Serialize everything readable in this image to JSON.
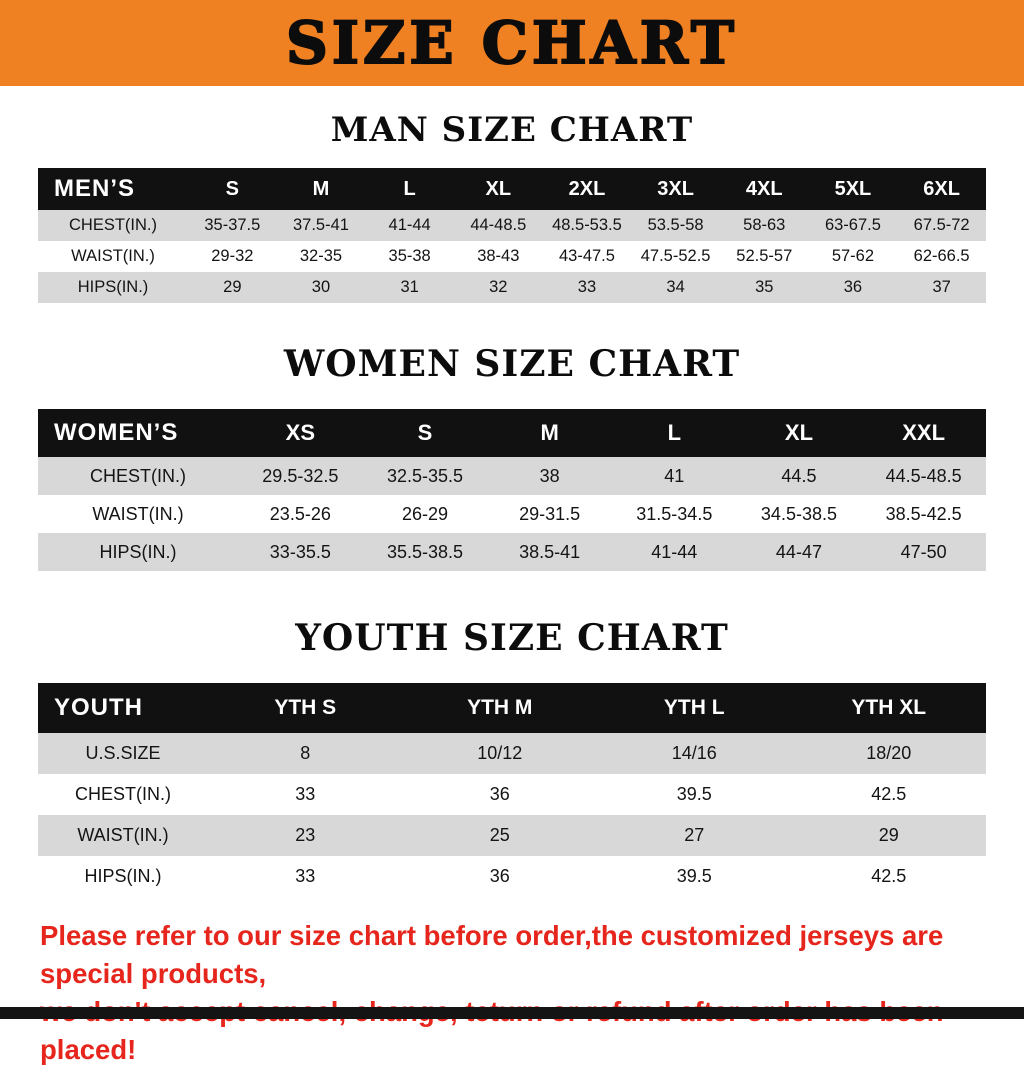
{
  "banner": {
    "title": "SIZE CHART",
    "bg_color": "#f08122"
  },
  "men": {
    "heading": "MAN SIZE CHART",
    "header_label": "MEN’S",
    "columns": [
      "S",
      "M",
      "L",
      "XL",
      "2XL",
      "3XL",
      "4XL",
      "5XL",
      "6XL"
    ],
    "rows": [
      {
        "label": "CHEST(IN.)",
        "values": [
          "35-37.5",
          "37.5-41",
          "41-44",
          "44-48.5",
          "48.5-53.5",
          "53.5-58",
          "58-63",
          "63-67.5",
          "67.5-72"
        ]
      },
      {
        "label": "WAIST(IN.)",
        "values": [
          "29-32",
          "32-35",
          "35-38",
          "38-43",
          "43-47.5",
          "47.5-52.5",
          "52.5-57",
          "57-62",
          "62-66.5"
        ]
      },
      {
        "label": "HIPS(IN.)",
        "values": [
          "29",
          "30",
          "31",
          "32",
          "33",
          "34",
          "35",
          "36",
          "37"
        ]
      }
    ]
  },
  "women": {
    "heading": "WOMEN SIZE CHART",
    "header_label": "WOMEN’S",
    "columns": [
      "XS",
      "S",
      "M",
      "L",
      "XL",
      "XXL"
    ],
    "rows": [
      {
        "label": "CHEST(IN.)",
        "values": [
          "29.5-32.5",
          "32.5-35.5",
          "38",
          "41",
          "44.5",
          "44.5-48.5"
        ]
      },
      {
        "label": "WAIST(IN.)",
        "values": [
          "23.5-26",
          "26-29",
          "29-31.5",
          "31.5-34.5",
          "34.5-38.5",
          "38.5-42.5"
        ]
      },
      {
        "label": "HIPS(IN.)",
        "values": [
          "33-35.5",
          "35.5-38.5",
          "38.5-41",
          "41-44",
          "44-47",
          "47-50"
        ]
      }
    ]
  },
  "youth": {
    "heading": "YOUTH SIZE CHART",
    "header_label": "YOUTH",
    "columns": [
      "YTH S",
      "YTH M",
      "YTH L",
      "YTH XL"
    ],
    "rows": [
      {
        "label": "U.S.SIZE",
        "values": [
          "8",
          "10/12",
          "14/16",
          "18/20"
        ]
      },
      {
        "label": "CHEST(IN.)",
        "values": [
          "33",
          "36",
          "39.5",
          "42.5"
        ]
      },
      {
        "label": "WAIST(IN.)",
        "values": [
          "23",
          "25",
          "27",
          "29"
        ]
      },
      {
        "label": "HIPS(IN.)",
        "values": [
          "33",
          "36",
          "39.5",
          "42.5"
        ]
      }
    ]
  },
  "footer": {
    "line1": "Please refer to our size chart before order,the customized jerseys are special products,",
    "line2": "we don't accept cancel, change, teturn or refund after order has been placed!",
    "text_color": "#e6251c"
  },
  "bottom_bar_color": "#141414",
  "table_colors": {
    "header_bg": "#111111",
    "header_text": "#ffffff",
    "row_gray": "#d8d8d8",
    "row_white": "#ffffff"
  }
}
